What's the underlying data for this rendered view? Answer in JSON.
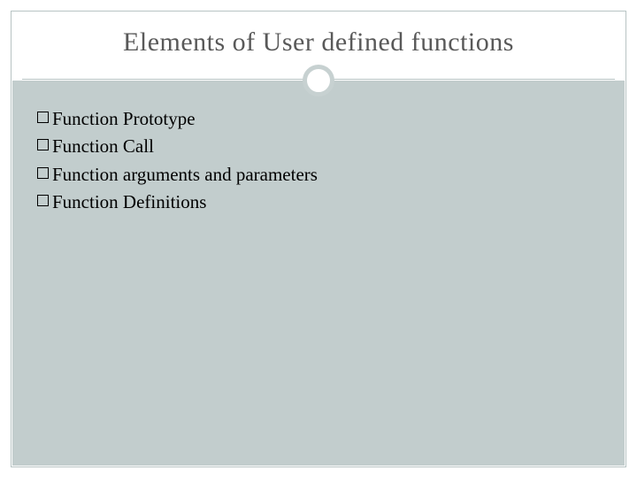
{
  "slide": {
    "title": "Elements of User defined functions",
    "title_color": "#595959",
    "title_fontsize": 30,
    "background_color": "#ffffff",
    "content_background": "#c2cdcd",
    "border_color": "#b8c4c4",
    "circle_border_color": "#c7d1d1",
    "bullets": [
      {
        "text": "Function Prototype"
      },
      {
        "text": "Function Call"
      },
      {
        "text": "Function arguments and parameters"
      },
      {
        "text": "Function Definitions"
      }
    ],
    "bullet_text_color": "#000000",
    "bullet_fontsize": 21,
    "bullet_box_border": "#000000"
  }
}
